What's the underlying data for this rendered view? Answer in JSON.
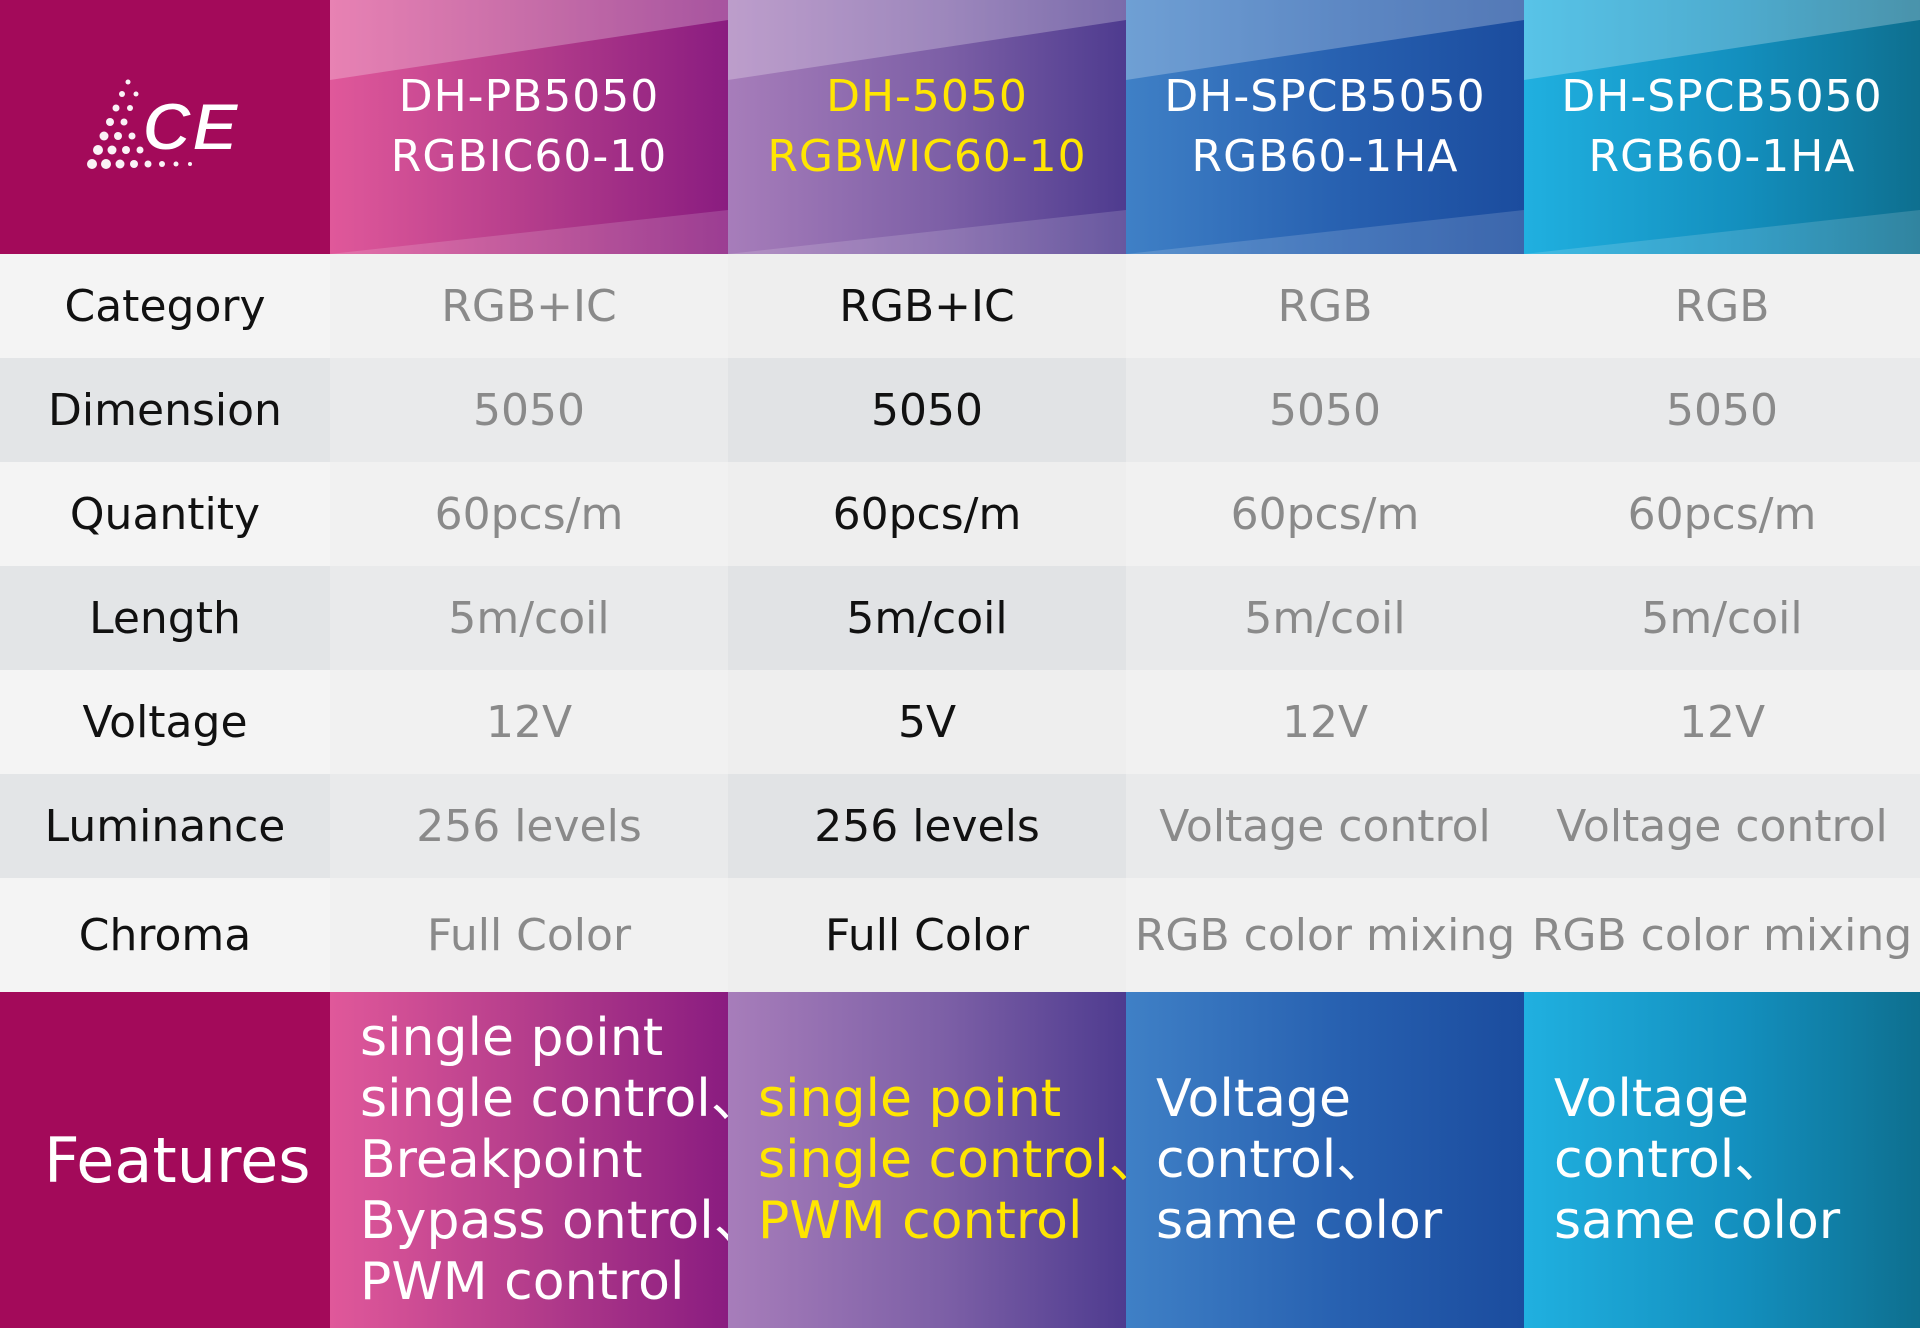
{
  "header": {
    "logo_text": "CE",
    "columns": [
      {
        "line1": "DH-PB5050",
        "line2": "RGBIC60-10",
        "highlight": false
      },
      {
        "line1": "DH-5050",
        "line2": "RGBWIC60-10",
        "highlight": true
      },
      {
        "line1": "DH-SPCB5050",
        "line2": "RGB60-1HA",
        "highlight": false
      },
      {
        "line1": "DH-SPCB5050",
        "line2": "RGB60-1HA",
        "highlight": false
      }
    ]
  },
  "rows": [
    {
      "label": "Category",
      "values": [
        "RGB+IC",
        "RGB+IC",
        "RGB",
        "RGB"
      ]
    },
    {
      "label": "Dimension",
      "values": [
        "5050",
        "5050",
        "5050",
        "5050"
      ]
    },
    {
      "label": "Quantity",
      "values": [
        "60pcs/m",
        "60pcs/m",
        "60pcs/m",
        "60pcs/m"
      ]
    },
    {
      "label": "Length",
      "values": [
        "5m/coil",
        "5m/coil",
        "5m/coil",
        "5m/coil"
      ]
    },
    {
      "label": "Voltage",
      "values": [
        "12V",
        "5V",
        "12V",
        "12V"
      ]
    },
    {
      "label": "Luminance",
      "values": [
        "256 levels",
        "256 levels",
        "Voltage control",
        "Voltage control"
      ]
    },
    {
      "label": "Chroma",
      "values": [
        "Full Color",
        "Full Color",
        "RGB color mixing",
        "RGB color mixing"
      ]
    }
  ],
  "features": {
    "label": "Features",
    "columns": [
      [
        "single point",
        "single control、",
        "Breakpoint",
        "Bypass ontrol、",
        "PWM control"
      ],
      [
        "single point",
        "single control、",
        "PWM control"
      ],
      [
        "Voltage",
        "control、",
        "same color"
      ],
      [
        "Voltage",
        "control、",
        "same color"
      ]
    ]
  },
  "colors": {
    "brand_magenta": "#a30a5a",
    "highlight_yellow": "#ffe600",
    "col1": "#b03a8a",
    "col2": "#7c5fa6",
    "col3": "#2760b0",
    "col4": "#138fbe"
  }
}
